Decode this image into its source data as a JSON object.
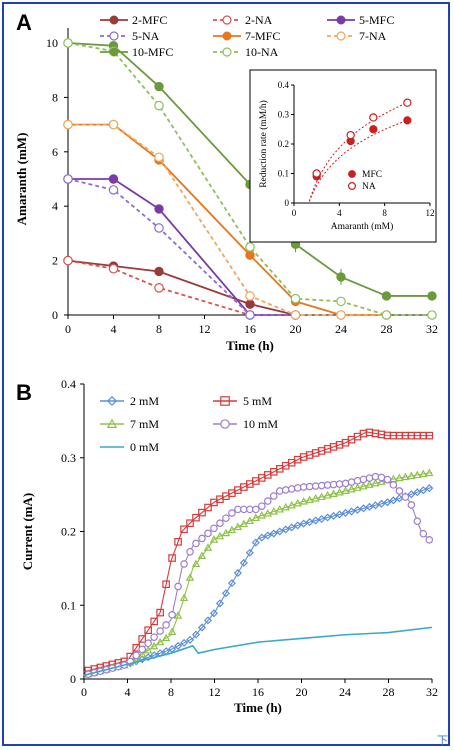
{
  "chart_data": [
    {
      "panel": "A",
      "type": "line",
      "xlabel": "Time (h)",
      "ylabel": "Amaranth (mM)",
      "xlim": [
        0,
        32
      ],
      "ylim": [
        0,
        10
      ],
      "xticks": [
        0,
        4,
        8,
        12,
        16,
        20,
        24,
        28,
        32
      ],
      "yticks": [
        0,
        2,
        4,
        6,
        8,
        10
      ],
      "legend_position": "top",
      "series": [
        {
          "name": "2-MFC",
          "color": "#9b3a3a",
          "marker": "filled-circle",
          "dashed": false,
          "x": [
            0,
            4,
            8,
            16,
            20
          ],
          "y": [
            2.0,
            1.8,
            1.6,
            0.4,
            0.0
          ]
        },
        {
          "name": "2-NA",
          "color": "#d9534f",
          "marker": "open-circle",
          "dashed": true,
          "x": [
            0,
            4,
            8,
            16,
            20
          ],
          "y": [
            2.0,
            1.7,
            1.0,
            0.0,
            0.0
          ]
        },
        {
          "name": "5-MFC",
          "color": "#7a3aa8",
          "marker": "filled-circle",
          "dashed": false,
          "x": [
            0,
            4,
            8,
            16,
            20
          ],
          "y": [
            5.0,
            5.0,
            3.9,
            0.0,
            0.0
          ]
        },
        {
          "name": "5-NA",
          "color": "#8a6fcf",
          "marker": "open-circle",
          "dashed": true,
          "x": [
            0,
            4,
            8,
            16,
            20
          ],
          "y": [
            5.0,
            4.6,
            3.2,
            0.0,
            0.0
          ]
        },
        {
          "name": "7-MFC",
          "color": "#e8761c",
          "marker": "filled-circle",
          "dashed": false,
          "x": [
            0,
            4,
            8,
            16,
            20,
            24,
            28
          ],
          "y": [
            7.0,
            7.0,
            5.7,
            2.2,
            0.5,
            0.0,
            0.0
          ]
        },
        {
          "name": "7-NA",
          "color": "#f2a55c",
          "marker": "open-circle",
          "dashed": true,
          "x": [
            0,
            4,
            8,
            16,
            20,
            24,
            28
          ],
          "y": [
            7.0,
            7.0,
            5.8,
            0.7,
            0.0,
            0.0,
            0.0
          ]
        },
        {
          "name": "10-MFC",
          "color": "#6a9a3a",
          "marker": "filled-circle",
          "dashed": false,
          "x": [
            0,
            4,
            8,
            16,
            20,
            24,
            28,
            32
          ],
          "y": [
            10.0,
            9.9,
            8.4,
            4.8,
            2.6,
            1.4,
            0.7,
            0.7
          ]
        },
        {
          "name": "10-NA",
          "color": "#8fbf5a",
          "marker": "open-circle",
          "dashed": true,
          "x": [
            0,
            4,
            8,
            16,
            20,
            24,
            28,
            32
          ],
          "y": [
            10.0,
            9.7,
            7.7,
            2.5,
            0.6,
            0.5,
            0.0,
            0.0
          ]
        }
      ],
      "inset": {
        "type": "scatter",
        "xlabel": "Amaranth (mM)",
        "ylabel": "Reduction rate (mM/h)",
        "xlim": [
          0,
          12
        ],
        "ylim": [
          0,
          0.4
        ],
        "xticks": [
          0,
          4,
          8,
          12
        ],
        "yticks": [
          0,
          0.1,
          0.2,
          0.3,
          0.4
        ],
        "series": [
          {
            "name": "MFC",
            "color": "#cc1f1f",
            "marker": "filled-circle",
            "x": [
              2,
              5,
              7,
              10
            ],
            "y": [
              0.09,
              0.21,
              0.25,
              0.28
            ]
          },
          {
            "name": "NA",
            "color": "#cc1f1f",
            "marker": "open-circle",
            "x": [
              2,
              5,
              7,
              10
            ],
            "y": [
              0.1,
              0.23,
              0.29,
              0.34
            ]
          }
        ]
      }
    },
    {
      "panel": "B",
      "type": "scatter",
      "xlabel": "Time (h)",
      "ylabel": "Current (mA)",
      "xlim": [
        0,
        32
      ],
      "ylim": [
        0,
        0.4
      ],
      "xticks": [
        0,
        4,
        8,
        12,
        16,
        20,
        24,
        28,
        32
      ],
      "yticks": [
        0,
        0.1,
        0.2,
        0.3,
        0.4
      ],
      "legend_position": "top-left",
      "series": [
        {
          "name": "2 mM",
          "color": "#5b8fd9",
          "marker": "open-diamond",
          "x": [
            0,
            4,
            8,
            10,
            12,
            14,
            16,
            20,
            24,
            28,
            32
          ],
          "y": [
            0.005,
            0.02,
            0.04,
            0.055,
            0.09,
            0.14,
            0.19,
            0.21,
            0.225,
            0.24,
            0.26
          ]
        },
        {
          "name": "5 mM",
          "color": "#d63a3a",
          "marker": "open-square",
          "x": [
            0,
            4,
            7,
            8,
            9,
            10,
            12,
            16,
            20,
            24,
            26,
            28,
            32
          ],
          "y": [
            0.01,
            0.025,
            0.09,
            0.16,
            0.2,
            0.215,
            0.24,
            0.27,
            0.3,
            0.32,
            0.335,
            0.33,
            0.33
          ]
        },
        {
          "name": "7 mM",
          "color": "#8fc24a",
          "marker": "open-triangle",
          "x": [
            0,
            4,
            8,
            9,
            10,
            12,
            16,
            20,
            24,
            28,
            32
          ],
          "y": [
            0.005,
            0.02,
            0.06,
            0.1,
            0.15,
            0.19,
            0.22,
            0.24,
            0.255,
            0.27,
            0.28
          ]
        },
        {
          "name": "10 mM",
          "color": "#9b7fd0",
          "marker": "open-circle",
          "x": [
            0,
            4,
            8,
            9,
            10,
            12,
            14,
            16,
            18,
            20,
            24,
            27,
            28,
            30,
            31,
            32
          ],
          "y": [
            0.005,
            0.02,
            0.08,
            0.15,
            0.18,
            0.205,
            0.23,
            0.23,
            0.255,
            0.26,
            0.265,
            0.275,
            0.27,
            0.24,
            0.2,
            0.185
          ]
        },
        {
          "name": "0 mM",
          "color": "#3aa8c8",
          "marker": "none",
          "x": [
            0,
            4,
            8,
            10,
            10.5,
            12,
            16,
            20,
            24,
            28,
            32
          ],
          "y": [
            0.005,
            0.02,
            0.035,
            0.045,
            0.035,
            0.04,
            0.05,
            0.055,
            0.06,
            0.063,
            0.07
          ]
        }
      ]
    }
  ]
}
